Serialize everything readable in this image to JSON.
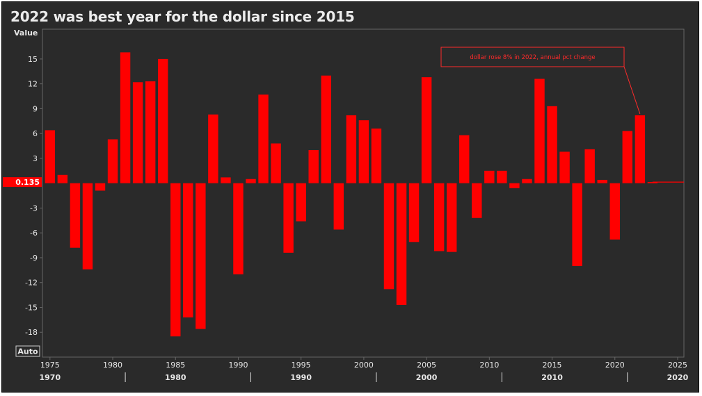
{
  "title": "2022 was best year for the dollar since 2015",
  "colors": {
    "background": "#2a2a2a",
    "bar": "#ff0000",
    "text": "#e6e6e6",
    "axis": "#666666",
    "annotation": "#ff2a2a"
  },
  "chart_data": {
    "type": "bar",
    "title": "2022 was best year for the dollar since 2015",
    "ylabel": "Value",
    "xlabel": "",
    "ylim": [
      -21,
      18.6
    ],
    "xlim": [
      1974.4,
      2025.5
    ],
    "yticks": [
      15,
      12,
      9,
      6,
      3,
      -3,
      -6,
      -9,
      -12,
      -15,
      -18
    ],
    "xticks_minor": [
      1975,
      1980,
      1985,
      1990,
      1995,
      2000,
      2005,
      2010,
      2015,
      2020,
      2025
    ],
    "xticks_major": [
      1970,
      1980,
      1990,
      2000,
      2010,
      2020
    ],
    "last_value_label": "0.135",
    "last_value": 0.135,
    "auto_button": "Auto",
    "annotation": "dollar rose 8% in 2022, annual pct change",
    "annotation_year": 2022,
    "years": [
      1975,
      1976,
      1977,
      1978,
      1979,
      1980,
      1981,
      1982,
      1983,
      1984,
      1985,
      1986,
      1987,
      1988,
      1989,
      1990,
      1991,
      1992,
      1993,
      1994,
      1995,
      1996,
      1997,
      1998,
      1999,
      2000,
      2001,
      2002,
      2003,
      2004,
      2005,
      2006,
      2007,
      2008,
      2009,
      2010,
      2011,
      2012,
      2013,
      2014,
      2015,
      2016,
      2017,
      2018,
      2019,
      2020,
      2021,
      2022,
      2023
    ],
    "values": [
      6.4,
      1.0,
      -7.8,
      -10.4,
      -0.9,
      5.3,
      15.8,
      12.2,
      12.3,
      15.0,
      -18.5,
      -16.2,
      -17.6,
      8.3,
      0.7,
      -11.0,
      0.5,
      10.7,
      4.8,
      -8.4,
      -4.6,
      4.0,
      13.0,
      -5.6,
      8.2,
      7.6,
      6.6,
      -12.8,
      -14.7,
      -7.1,
      12.8,
      -8.2,
      -8.3,
      5.8,
      -4.2,
      1.5,
      1.5,
      -0.6,
      0.5,
      12.6,
      9.3,
      3.8,
      -10.0,
      4.1,
      0.4,
      -6.8,
      6.3,
      8.2,
      0.135
    ]
  }
}
